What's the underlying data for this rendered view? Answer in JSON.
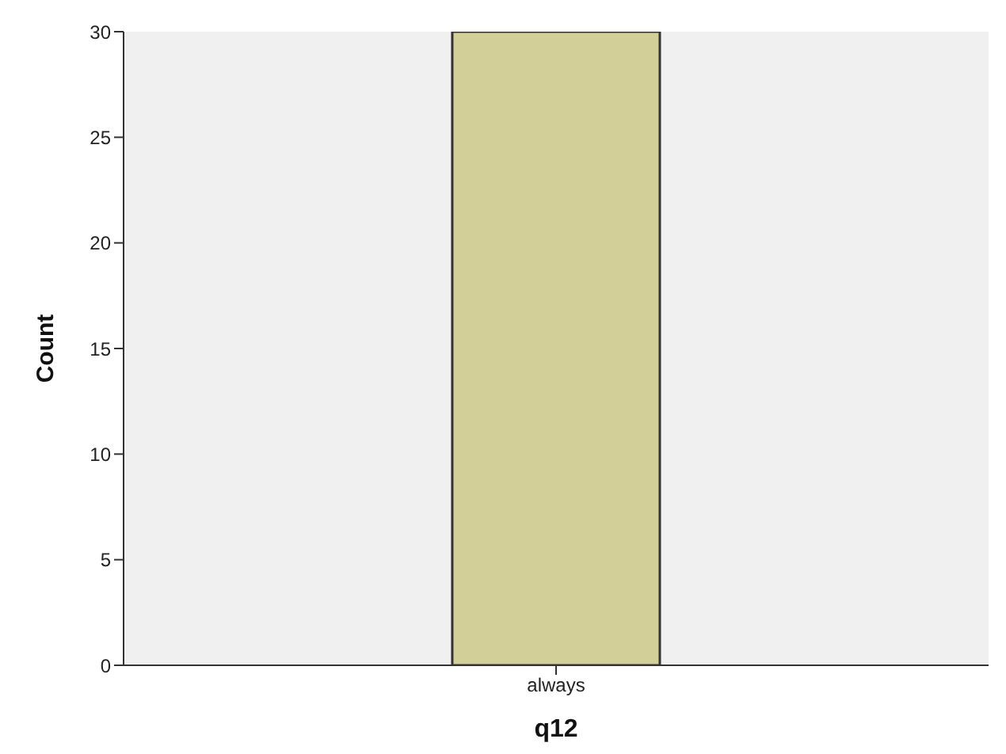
{
  "chart_data": {
    "type": "bar",
    "categories": [
      "always"
    ],
    "values": [
      30
    ],
    "color": "#d3cf98",
    "xlabel": "q12",
    "ylabel": "Count",
    "ylim": [
      0,
      30
    ],
    "yticks": [
      0,
      5,
      10,
      15,
      20,
      25,
      30
    ]
  }
}
